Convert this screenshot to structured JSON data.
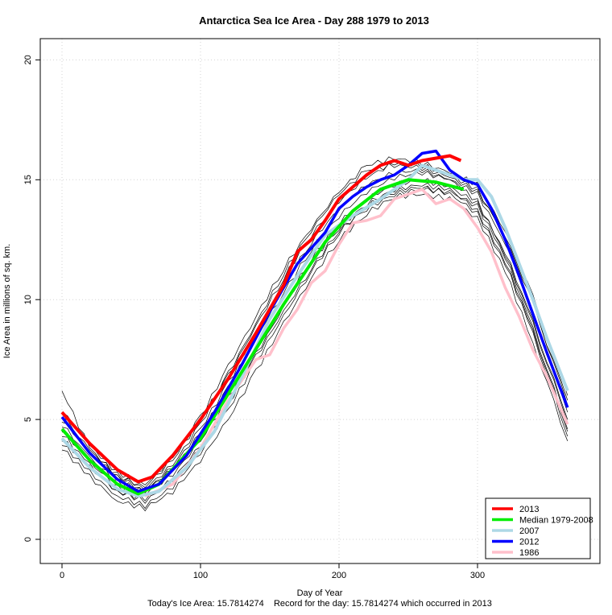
{
  "chart_data": {
    "type": "line",
    "title": "Antarctica Sea Ice Area - Day 288 1979 to 2013",
    "xlabel": "Day of Year",
    "ylabel": "Ice Area in millions of sq. km.",
    "footer": "Today's Ice Area: 15.7814274    Record for the day: 15.7814274 which occurred in 2013",
    "xlim": [
      0,
      365
    ],
    "ylim": [
      0,
      20
    ],
    "xticks": [
      "0",
      "100",
      "200",
      "300"
    ],
    "yticks": [
      "0",
      "5",
      "10",
      "15",
      "20"
    ],
    "grid": true,
    "legend_position": "bottom-right",
    "series": [
      {
        "name": "2013",
        "color": "#ff0000",
        "x": [
          0,
          20,
          40,
          55,
          65,
          80,
          100,
          120,
          140,
          160,
          170,
          180,
          190,
          200,
          210,
          220,
          230,
          240,
          250,
          260,
          270,
          280,
          288
        ],
        "y": [
          5.3,
          4.0,
          2.9,
          2.4,
          2.6,
          3.5,
          5.0,
          6.7,
          8.6,
          10.6,
          12.0,
          12.5,
          13.3,
          14.2,
          14.7,
          15.2,
          15.6,
          15.8,
          15.6,
          15.8,
          15.9,
          16.0,
          15.8
        ]
      },
      {
        "name": "Median 1979-2008",
        "color": "#00ee00",
        "x": [
          0,
          20,
          40,
          55,
          70,
          100,
          130,
          160,
          190,
          210,
          230,
          250,
          270,
          290
        ],
        "y": [
          4.6,
          3.3,
          2.3,
          1.9,
          2.3,
          4.2,
          7.0,
          9.8,
          12.4,
          13.7,
          14.6,
          15.0,
          14.9,
          14.6
        ]
      },
      {
        "name": "2007",
        "color": "#add8e6",
        "x": [
          0,
          20,
          40,
          55,
          70,
          90,
          110,
          130,
          150,
          170,
          190,
          210,
          230,
          250,
          260,
          270,
          290,
          300,
          310,
          320,
          330,
          340,
          350,
          365
        ],
        "y": [
          4.2,
          3.0,
          2.1,
          1.8,
          2.0,
          3.0,
          4.5,
          6.8,
          9.2,
          11.0,
          12.7,
          13.5,
          14.2,
          15.0,
          15.6,
          15.4,
          15.0,
          15.0,
          14.3,
          13.0,
          11.5,
          10.0,
          8.4,
          6.2
        ]
      },
      {
        "name": "2012",
        "color": "#0000ff",
        "x": [
          0,
          20,
          40,
          55,
          70,
          90,
          110,
          130,
          150,
          170,
          190,
          200,
          210,
          220,
          230,
          240,
          250,
          260,
          270,
          280,
          290,
          300,
          310,
          320,
          330,
          340,
          350,
          365
        ],
        "y": [
          5.1,
          3.6,
          2.5,
          2.0,
          2.3,
          3.5,
          5.3,
          7.3,
          9.5,
          11.5,
          12.8,
          13.8,
          14.3,
          14.7,
          15.0,
          15.2,
          15.6,
          16.1,
          16.2,
          15.4,
          15.0,
          14.8,
          13.8,
          12.5,
          11.0,
          9.4,
          7.8,
          5.5
        ]
      },
      {
        "name": "1986",
        "color": "#ffc0cb",
        "x": [
          60,
          80,
          100,
          120,
          140,
          150,
          160,
          170,
          180,
          190,
          200,
          210,
          220,
          230,
          240,
          250,
          260,
          270,
          280,
          290,
          300,
          310,
          320,
          330,
          340,
          350,
          365
        ],
        "y": [
          1.8,
          2.3,
          3.8,
          5.8,
          7.5,
          7.7,
          8.8,
          9.6,
          10.7,
          11.2,
          12.3,
          13.2,
          13.3,
          13.5,
          14.2,
          14.4,
          14.6,
          14.0,
          14.2,
          13.8,
          13.0,
          12.0,
          10.5,
          9.3,
          7.9,
          6.8,
          4.8
        ]
      }
    ],
    "other_years": {
      "color": "#000000",
      "x": [
        0,
        20,
        40,
        60,
        80,
        100,
        120,
        140,
        160,
        180,
        200,
        220,
        240,
        260,
        280,
        300,
        320,
        340,
        365
      ],
      "y": [
        [
          6.2,
          3.8,
          2.6,
          2.0,
          3.0,
          4.6,
          6.5,
          8.6,
          10.6,
          12.4,
          13.8,
          14.8,
          15.3,
          15.4,
          15.0,
          14.1,
          11.9,
          9.0,
          4.9
        ],
        [
          4.0,
          2.8,
          1.8,
          1.4,
          2.2,
          3.6,
          5.4,
          7.4,
          9.3,
          11.2,
          12.8,
          13.9,
          14.5,
          14.7,
          14.4,
          13.6,
          11.5,
          8.6,
          4.3
        ],
        [
          5.0,
          3.6,
          2.6,
          2.2,
          3.3,
          5.0,
          6.8,
          8.9,
          10.9,
          12.7,
          14.1,
          15.1,
          15.7,
          15.6,
          15.2,
          14.6,
          12.6,
          9.8,
          5.8
        ],
        [
          4.4,
          3.1,
          2.0,
          1.7,
          2.5,
          3.9,
          5.7,
          7.6,
          9.5,
          11.3,
          12.9,
          13.8,
          14.4,
          14.6,
          14.5,
          13.9,
          11.8,
          8.8,
          4.6
        ],
        [
          4.8,
          3.4,
          2.4,
          2.0,
          2.9,
          4.4,
          6.3,
          8.4,
          10.3,
          12.1,
          13.5,
          14.5,
          15.1,
          15.3,
          15.0,
          14.4,
          12.4,
          9.4,
          5.3
        ],
        [
          3.8,
          2.6,
          1.6,
          1.3,
          2.0,
          3.3,
          5.0,
          7.0,
          9.0,
          10.9,
          12.5,
          13.6,
          14.3,
          14.4,
          14.2,
          13.4,
          11.2,
          8.2,
          4.1
        ],
        [
          5.4,
          3.9,
          2.8,
          2.3,
          3.4,
          5.1,
          7.2,
          9.3,
          11.3,
          13.0,
          14.5,
          15.6,
          15.9,
          15.7,
          15.3,
          14.8,
          12.9,
          10.1,
          6.0
        ],
        [
          4.6,
          3.2,
          2.2,
          1.9,
          2.7,
          4.1,
          5.9,
          7.9,
          9.8,
          11.7,
          13.2,
          14.2,
          14.8,
          15.0,
          14.7,
          14.0,
          12.0,
          9.1,
          5.0
        ],
        [
          4.2,
          3.0,
          2.0,
          1.6,
          2.4,
          3.8,
          5.6,
          7.7,
          9.7,
          11.6,
          13.0,
          14.0,
          14.6,
          14.8,
          14.6,
          13.7,
          11.6,
          8.7,
          4.5
        ],
        [
          5.2,
          3.7,
          2.7,
          2.1,
          3.1,
          4.8,
          6.9,
          9.0,
          11.1,
          12.9,
          14.4,
          15.4,
          15.6,
          15.5,
          15.1,
          14.5,
          12.7,
          9.9,
          5.6
        ]
      ]
    }
  }
}
